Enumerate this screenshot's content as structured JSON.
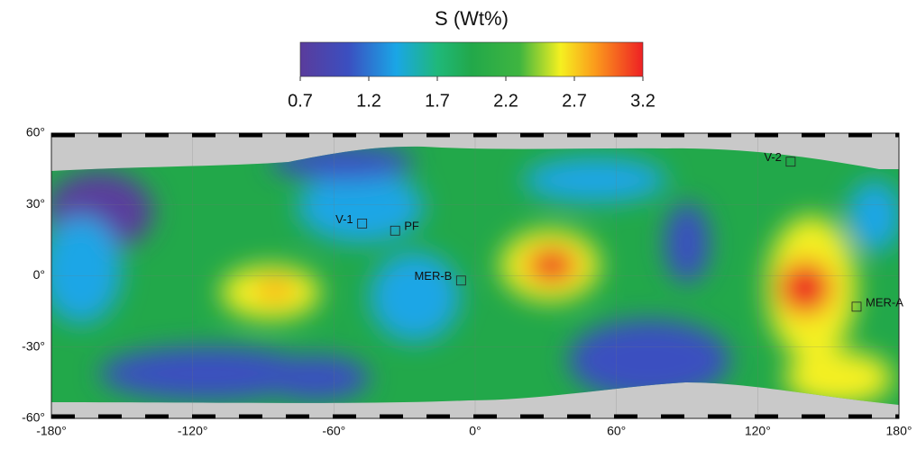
{
  "colorbar": {
    "title": "S (Wt%)",
    "lim": [
      0.7,
      3.2
    ],
    "ticks": [
      0.7,
      1.2,
      1.7,
      2.2,
      2.7,
      3.2
    ]
  },
  "map": {
    "xlim": [
      -180,
      180
    ],
    "ylim": [
      -60,
      60
    ],
    "xticks": [
      {
        "value": -180,
        "label": "-180°"
      },
      {
        "value": -120,
        "label": "-120°"
      },
      {
        "value": -60,
        "label": "-60°"
      },
      {
        "value": 0,
        "label": "0°"
      },
      {
        "value": 60,
        "label": "60°"
      },
      {
        "value": 120,
        "label": "120°"
      },
      {
        "value": 180,
        "label": "180°"
      }
    ],
    "yticks": [
      {
        "value": 60,
        "label": "60°"
      },
      {
        "value": 30,
        "label": "30°"
      },
      {
        "value": 0,
        "label": "0°"
      },
      {
        "value": -30,
        "label": "-30°"
      },
      {
        "value": -60,
        "label": "-60°"
      }
    ],
    "sites": [
      {
        "label": "V-1",
        "lon": -48,
        "lat": 22
      },
      {
        "label": "PF",
        "lon": -34,
        "lat": 19
      },
      {
        "label": "MER-B",
        "lon": -6,
        "lat": -2
      },
      {
        "label": "V-2",
        "lon": 134,
        "lat": 48
      },
      {
        "label": "MER-A",
        "lon": 162,
        "lat": -13
      }
    ]
  }
}
